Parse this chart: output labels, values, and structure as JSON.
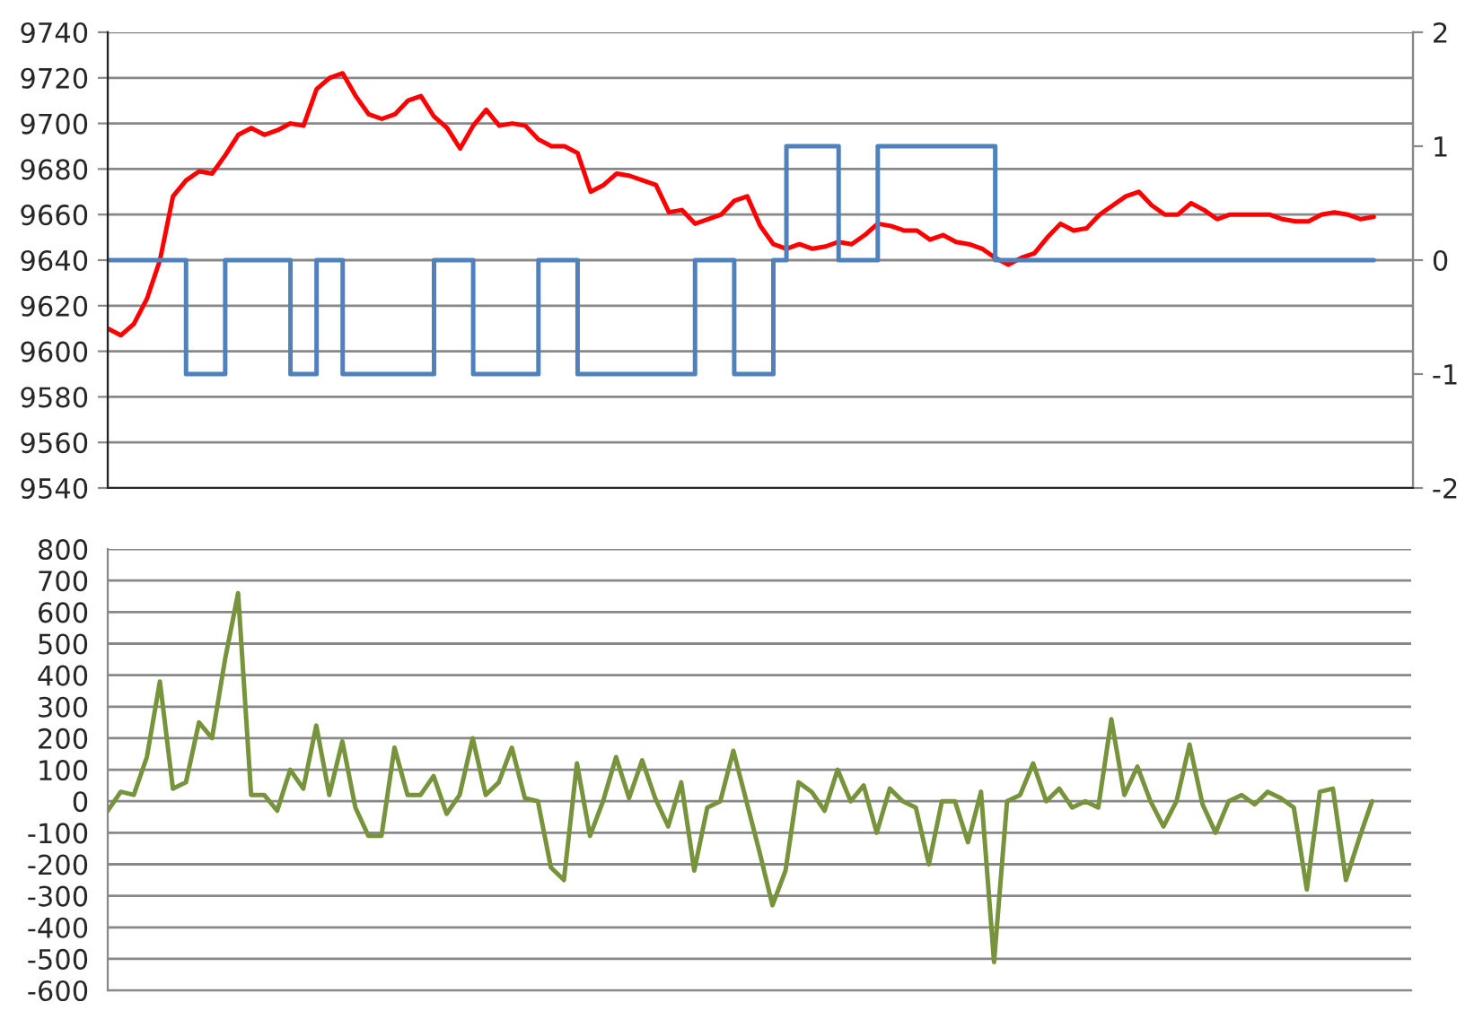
{
  "chart_data": [
    {
      "type": "line",
      "categories": [
        null,
        null,
        null,
        null,
        null,
        null,
        null,
        null,
        null,
        null,
        null,
        null,
        null,
        null,
        null,
        null,
        null,
        null,
        null,
        null,
        null,
        null,
        null,
        null,
        null,
        null,
        null,
        null,
        null,
        null,
        null,
        null,
        null,
        null,
        null,
        null,
        null,
        null,
        null,
        null,
        null,
        null,
        null,
        null,
        null,
        null,
        null,
        null,
        null,
        null,
        null,
        null,
        null,
        null,
        null,
        null,
        null,
        null,
        null,
        null,
        null,
        null,
        null,
        null,
        null,
        null,
        null,
        null,
        null,
        null,
        null,
        null,
        null,
        null,
        null,
        null,
        null,
        null,
        null,
        null,
        null,
        null,
        null,
        null,
        null,
        null,
        null,
        null,
        null,
        null,
        null,
        null,
        null,
        null,
        null,
        null,
        null,
        null
      ],
      "series": [
        {
          "color": "#ff0000",
          "values": [
            9610,
            9607,
            9612,
            9623,
            9640,
            9668,
            9675,
            9679,
            9678,
            9686,
            9695,
            9698,
            9695,
            9697,
            9700,
            9699,
            9715,
            9720,
            9722,
            9712,
            9704,
            9702,
            9704,
            9710,
            9712,
            9703,
            9698,
            9689,
            9699,
            9706,
            9699,
            9700,
            9699,
            9693,
            9690,
            9690,
            9687,
            9670,
            9673,
            9678,
            9677,
            9675,
            9673,
            9661,
            9662,
            9656,
            9658,
            9660,
            9666,
            9668,
            9655,
            9647,
            9645,
            9647,
            9645,
            9646,
            9648,
            9647,
            9651,
            9656,
            9655,
            9653,
            9653,
            9649,
            9651,
            9648,
            9647,
            9645,
            9641,
            9638,
            9641,
            9643,
            9650,
            9656,
            9653,
            9654,
            9660,
            9664,
            9668,
            9670,
            9664,
            9660,
            9660,
            9665,
            9662,
            9658,
            9660,
            9660,
            9660,
            9660,
            9658,
            9657,
            9657,
            9660,
            9661,
            9660,
            9658,
            9659
          ]
        },
        {
          "type": "step",
          "axis": "y2",
          "color": "#4f81bd",
          "values": [
            0,
            0,
            0,
            0,
            0,
            0,
            -1,
            -1,
            -1,
            0,
            0,
            0,
            0,
            0,
            -1,
            -1,
            0,
            0,
            -1,
            -1,
            -1,
            -1,
            -1,
            -1,
            -1,
            0,
            0,
            0,
            -1,
            -1,
            -1,
            -1,
            -1,
            0,
            0,
            0,
            -1,
            -1,
            -1,
            -1,
            -1,
            -1,
            -1,
            -1,
            -1,
            0,
            0,
            0,
            -1,
            -1,
            -1,
            0,
            1,
            1,
            1,
            1,
            0,
            0,
            0,
            1,
            1,
            1,
            1,
            1,
            1,
            1,
            1,
            1,
            0,
            0,
            0,
            0,
            0,
            0,
            0,
            0,
            0,
            0,
            0,
            0,
            0,
            0,
            0,
            0,
            0,
            0,
            0,
            0,
            0,
            0,
            0,
            0,
            0,
            0,
            0,
            0,
            0,
            0
          ]
        }
      ],
      "ylim": [
        9540,
        9740
      ],
      "yticks": [
        9540,
        9560,
        9580,
        9600,
        9620,
        9640,
        9660,
        9680,
        9700,
        9720,
        9740
      ],
      "y2lim": [
        -2,
        2
      ],
      "y2ticks": [
        -2,
        -1,
        0,
        1,
        2
      ],
      "grid": "y",
      "tick_labels": "y",
      "marker": "none",
      "line_style": "solid",
      "legend": false
    },
    {
      "type": "line",
      "categories": [
        null,
        null,
        null,
        null,
        null,
        null,
        null,
        null,
        null,
        null,
        null,
        null,
        null,
        null,
        null,
        null,
        null,
        null,
        null,
        null,
        null,
        null,
        null,
        null,
        null,
        null,
        null,
        null,
        null,
        null,
        null,
        null,
        null,
        null,
        null,
        null,
        null,
        null,
        null,
        null,
        null,
        null,
        null,
        null,
        null,
        null,
        null,
        null,
        null,
        null,
        null,
        null,
        null,
        null,
        null,
        null,
        null,
        null,
        null,
        null,
        null,
        null,
        null,
        null,
        null,
        null,
        null,
        null,
        null,
        null,
        null,
        null,
        null,
        null,
        null,
        null,
        null,
        null,
        null,
        null,
        null,
        null,
        null,
        null,
        null,
        null,
        null,
        null,
        null,
        null,
        null,
        null,
        null,
        null,
        null,
        null,
        null,
        null
      ],
      "series": [
        {
          "color": "#77933c",
          "values": [
            -30,
            30,
            20,
            140,
            380,
            40,
            60,
            250,
            200,
            450,
            660,
            20,
            20,
            -30,
            100,
            40,
            240,
            20,
            190,
            -20,
            -110,
            -110,
            170,
            20,
            20,
            80,
            -40,
            20,
            200,
            20,
            60,
            170,
            10,
            0,
            -210,
            -250,
            120,
            -110,
            0,
            140,
            10,
            130,
            10,
            -80,
            60,
            -220,
            -20,
            0,
            160,
            0,
            -160,
            -330,
            -220,
            60,
            30,
            -30,
            100,
            0,
            50,
            -100,
            40,
            0,
            -20,
            -200,
            0,
            0,
            -130,
            30,
            -510,
            0,
            20,
            120,
            0,
            40,
            -20,
            0,
            -20,
            260,
            20,
            110,
            0,
            -80,
            0,
            180,
            -10,
            -100,
            0,
            20,
            -10,
            30,
            10,
            -20,
            -280,
            30,
            40,
            -250,
            -120,
            0
          ]
        }
      ],
      "ylim": [
        -600,
        800
      ],
      "yticks": [
        -600,
        -500,
        -400,
        -300,
        -200,
        -100,
        0,
        100,
        200,
        300,
        400,
        500,
        600,
        700,
        800
      ],
      "grid": "y",
      "tick_labels": "y",
      "marker": "none",
      "line_style": "solid",
      "legend": false
    }
  ]
}
